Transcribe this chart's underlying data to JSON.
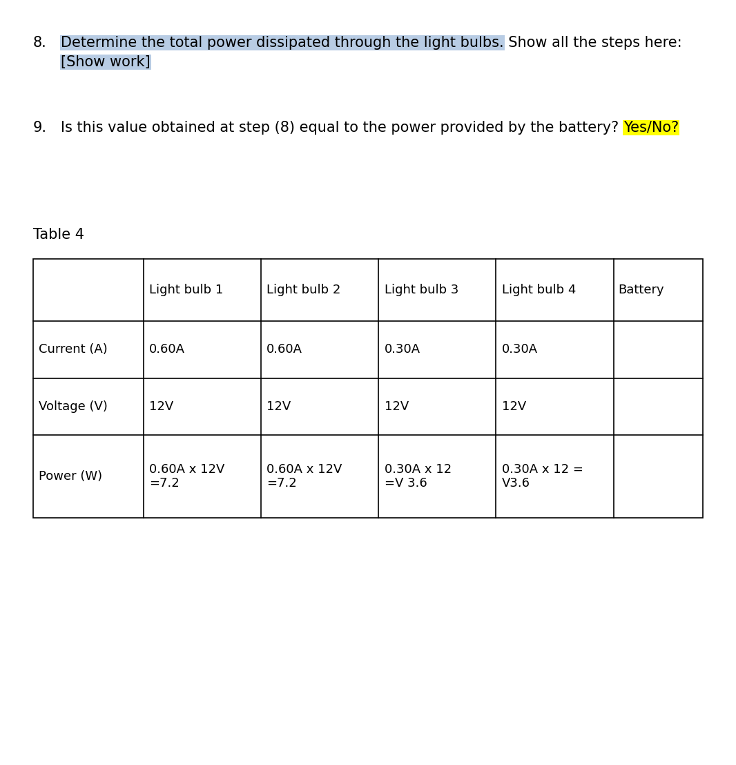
{
  "q8_number": "8.",
  "q8_highlighted": "Determine the total power dissipated through the light bulbs.",
  "q8_normal": " Show all the steps here:",
  "q8_show_work": "[Show work]",
  "q8_highlight_color": "#b8cce4",
  "q9_number": "9.",
  "q9_normal": "Is this value obtained at step (8) equal to the power provided by the battery? ",
  "q9_highlighted": "Yes/No?",
  "q9_highlight_color": "#ffff00",
  "table_title": "Table 4",
  "col_headers": [
    "",
    "Light bulb 1",
    "Light bulb 2",
    "Light bulb 3",
    "Light bulb 4",
    "Battery"
  ],
  "row_labels": [
    "Current (A)",
    "Voltage (V)",
    "Power (W)"
  ],
  "row1_data": [
    "0.60A",
    "0.60A",
    "0.30A",
    "0.30A",
    ""
  ],
  "row2_data": [
    "12V",
    "12V",
    "12V",
    "12V",
    ""
  ],
  "row3_data": [
    "0.60A x 12V\n=7.2",
    "0.60A x 12V\n=7.2",
    "0.30A x 12\n=V 3.6",
    "0.30A x 12 =\nV3.6",
    ""
  ],
  "font_size_text": 15,
  "font_size_table": 13,
  "font_size_table_title": 15,
  "background_color": "#ffffff",
  "text_color": "#000000",
  "table_border_color": "#000000"
}
